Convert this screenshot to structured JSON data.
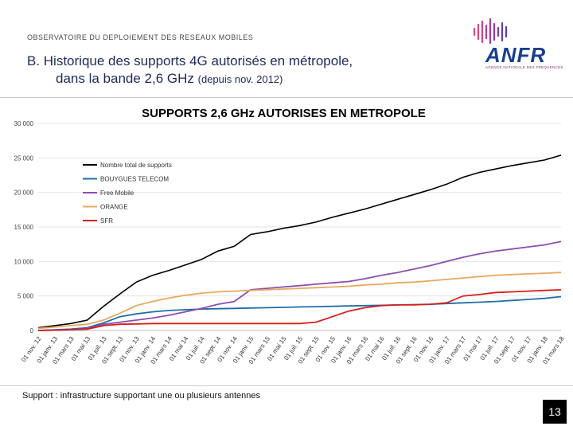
{
  "header": {
    "observatoire": "OBSERVATOIRE DU DEPLOIEMENT DES RESEAUX MOBILES",
    "title_main": "B. Historique des supports 4G autorisés en métropole,",
    "title_line2": "dans la bande 2,6 GHz",
    "title_paren": "(depuis nov. 2012)"
  },
  "logo": {
    "text": "ANFR",
    "subtitle": "AGENCE NATIONALE DES FREQUENCES"
  },
  "footnote": "Support : infrastructure supportant une ou plusieurs antennes",
  "page_number": "13",
  "chart_data": {
    "type": "line",
    "title": "SUPPORTS 2,6 GHz AUTORISES EN METROPOLE",
    "ylim": [
      0,
      30000
    ],
    "yticks": [
      "0",
      "5 000",
      "10 000",
      "15 000",
      "20 000",
      "25 000",
      "30 000"
    ],
    "ytick_values": [
      0,
      5000,
      10000,
      15000,
      20000,
      25000,
      30000
    ],
    "legend_position": "upper-left",
    "x_labels": [
      "01 nov. 12",
      "01 janv. 13",
      "01 mars 13",
      "01 mai 13",
      "01 juil. 13",
      "01 sept. 13",
      "01 nov. 13",
      "01 janv. 14",
      "01 mars 14",
      "01 mai 14",
      "01 juil. 14",
      "01 sept. 14",
      "01 nov. 14",
      "01 janv. 15",
      "01 mars 15",
      "01 mai 15",
      "01 juil. 15",
      "01 sept. 15",
      "01 nov. 15",
      "01 janv. 16",
      "01 mars 16",
      "01 mai 16",
      "01 juil. 16",
      "01 sept. 16",
      "01 nov. 16",
      "01 janv. 17",
      "01 mars 17",
      "01 mai 17",
      "01 juil. 17",
      "01 sept. 17",
      "01 nov. 17",
      "01 janv. 18",
      "01 mars 18"
    ],
    "series": [
      {
        "name": "Nombre total de supports",
        "color": "#000000",
        "values": [
          400,
          700,
          1000,
          1500,
          3500,
          5300,
          7000,
          8000,
          8700,
          9500,
          10300,
          11500,
          12200,
          13900,
          14300,
          14800,
          15200,
          15700,
          16400,
          17000,
          17600,
          18300,
          19000,
          19700,
          20400,
          21200,
          22200,
          22900,
          23400,
          23900,
          24300,
          24700,
          25400
        ]
      },
      {
        "name": "BOUYGUES TELECOM",
        "color": "#1f6fa8",
        "values": [
          0,
          100,
          200,
          400,
          1100,
          2000,
          2400,
          2700,
          2900,
          3000,
          3100,
          3150,
          3200,
          3250,
          3300,
          3350,
          3400,
          3450,
          3500,
          3550,
          3600,
          3650,
          3700,
          3750,
          3800,
          3900,
          4000,
          4100,
          4200,
          4350,
          4500,
          4650,
          4900
        ]
      },
      {
        "name": "Free Mobile",
        "color": "#8a4fb0",
        "values": [
          0,
          50,
          100,
          300,
          900,
          1200,
          1500,
          1800,
          2200,
          2700,
          3200,
          3800,
          4200,
          5900,
          6100,
          6300,
          6500,
          6700,
          6900,
          7100,
          7500,
          8000,
          8400,
          8900,
          9400,
          10000,
          10600,
          11100,
          11500,
          11800,
          12100,
          12400,
          12900
        ]
      },
      {
        "name": "ORANGE",
        "color": "#e8a860",
        "values": [
          300,
          500,
          700,
          900,
          1500,
          2500,
          3600,
          4200,
          4700,
          5100,
          5400,
          5600,
          5700,
          5800,
          5900,
          6000,
          6100,
          6200,
          6300,
          6400,
          6600,
          6700,
          6900,
          7000,
          7200,
          7400,
          7600,
          7800,
          8000,
          8100,
          8200,
          8300,
          8400
        ]
      },
      {
        "name": "SFR",
        "color": "#d81e1e",
        "values": [
          0,
          50,
          100,
          200,
          700,
          900,
          950,
          1000,
          1000,
          1000,
          1000,
          1000,
          1000,
          1000,
          1000,
          1000,
          1000,
          1200,
          2000,
          2800,
          3300,
          3600,
          3700,
          3700,
          3800,
          4000,
          5000,
          5200,
          5500,
          5600,
          5700,
          5800,
          5900
        ]
      }
    ]
  }
}
